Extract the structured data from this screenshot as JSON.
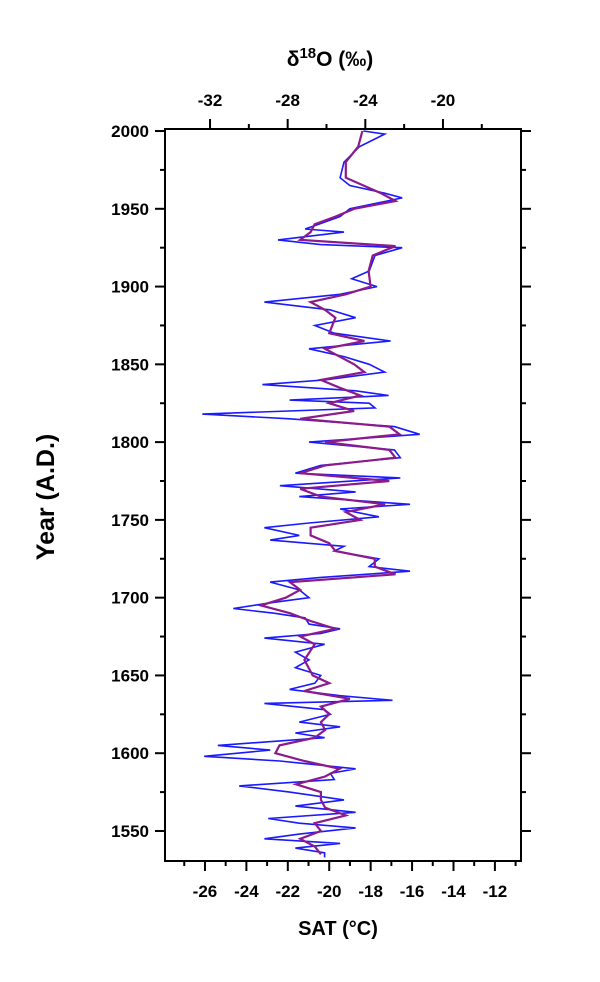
{
  "chart_data": {
    "type": "line",
    "x2label": [
      "δ",
      "18",
      "O (‰)"
    ],
    "xlabel": "SAT (°C)",
    "ylabel": "Year (A.D.)",
    "xlim": [
      -27.93,
      -10.74
    ],
    "xticks": [
      -26,
      -24,
      -22,
      -20,
      -18,
      -16,
      -14,
      -12
    ],
    "xminorticks": [
      -27,
      -25,
      -23,
      -21,
      -19,
      -17,
      -15,
      -13,
      -11
    ],
    "x2lim": [
      -34.32,
      -15.98
    ],
    "x2ticks": [
      -32,
      -28,
      -24,
      -20
    ],
    "x2minorticks": [
      -30,
      -26,
      -22,
      -18
    ],
    "ylim": [
      1530.7,
      2001.3
    ],
    "yticks": [
      1550,
      1600,
      1650,
      1700,
      1750,
      1800,
      1850,
      1900,
      1950,
      2000
    ],
    "yminorticks": [
      1575,
      1625,
      1675,
      1725,
      1775,
      1825,
      1875,
      1925,
      1975
    ],
    "series": [
      {
        "color": "#1a1aff",
        "axis": "x2",
        "y": [
          2000,
          1998,
          1990,
          1980,
          1970,
          1965,
          1960,
          1957,
          1950,
          1945,
          1940,
          1937,
          1935,
          1930,
          1927,
          1925,
          1920,
          1910,
          1905,
          1900,
          1895,
          1890,
          1885,
          1880,
          1875,
          1870,
          1865,
          1860,
          1855,
          1850,
          1845,
          1840,
          1837,
          1833,
          1830,
          1827,
          1825,
          1822,
          1818,
          1815,
          1810,
          1805,
          1800,
          1795,
          1790,
          1785,
          1780,
          1777,
          1772,
          1768,
          1765,
          1760,
          1757,
          1752,
          1748,
          1745,
          1740,
          1737,
          1733,
          1730,
          1725,
          1720,
          1717,
          1713,
          1710,
          1705,
          1700,
          1697,
          1693,
          1690,
          1687,
          1683,
          1680,
          1677,
          1674,
          1670,
          1665,
          1660,
          1655,
          1650,
          1645,
          1641,
          1637,
          1634,
          1632,
          1628,
          1625,
          1620,
          1617,
          1613,
          1610,
          1605,
          1602,
          1598,
          1595,
          1590,
          1587,
          1583,
          1579,
          1575,
          1570,
          1566,
          1562,
          1558,
          1555,
          1552,
          1548,
          1545,
          1542,
          1539,
          1536,
          1533
        ],
        "values": [
          -24.1,
          -23.0,
          -24.3,
          -25.1,
          -25.3,
          -24.8,
          -23.0,
          -22.1,
          -24.8,
          -25.3,
          -26.4,
          -27.1,
          -25.1,
          -28.5,
          -26.3,
          -22.1,
          -23.5,
          -23.8,
          -24.7,
          -23.4,
          -25.3,
          -29.2,
          -25.8,
          -24.5,
          -26.6,
          -25.6,
          -22.7,
          -26.9,
          -25.1,
          -23.8,
          -23.0,
          -26.1,
          -29.3,
          -24.5,
          -22.8,
          -27.9,
          -23.8,
          -23.5,
          -32.4,
          -27.9,
          -22.5,
          -21.2,
          -26.9,
          -22.5,
          -22.2,
          -26.3,
          -27.6,
          -22.2,
          -28.4,
          -24.5,
          -27.4,
          -21.7,
          -25.3,
          -23.3,
          -26.9,
          -29.2,
          -27.4,
          -28.9,
          -25.1,
          -25.6,
          -23.3,
          -23.8,
          -21.7,
          -26.3,
          -28.9,
          -27.4,
          -26.9,
          -28.7,
          -30.8,
          -28.7,
          -27.1,
          -26.9,
          -25.3,
          -26.3,
          -29.2,
          -26.1,
          -27.6,
          -26.9,
          -27.6,
          -26.3,
          -26.6,
          -27.9,
          -25.3,
          -22.6,
          -29.2,
          -26.1,
          -25.8,
          -27.4,
          -25.3,
          -27.6,
          -26.1,
          -31.6,
          -28.9,
          -32.3,
          -28.4,
          -24.5,
          -25.8,
          -25.6,
          -30.5,
          -27.9,
          -25.1,
          -27.6,
          -24.5,
          -29.0,
          -27.4,
          -24.5,
          -27.4,
          -29.2,
          -25.3,
          -27.6,
          -26.1,
          -26.1
        ]
      },
      {
        "color": "#8b1a8b",
        "axis": "x",
        "y": [
          2000,
          1990,
          1980,
          1970,
          1960,
          1955,
          1950,
          1945,
          1940,
          1935,
          1930,
          1926,
          1920,
          1910,
          1900,
          1895,
          1890,
          1885,
          1880,
          1870,
          1865,
          1860,
          1850,
          1845,
          1840,
          1835,
          1830,
          1825,
          1820,
          1815,
          1810,
          1805,
          1800,
          1795,
          1790,
          1785,
          1780,
          1775,
          1770,
          1765,
          1760,
          1755,
          1750,
          1745,
          1740,
          1735,
          1730,
          1725,
          1720,
          1715,
          1710,
          1705,
          1700,
          1695,
          1690,
          1685,
          1680,
          1675,
          1670,
          1660,
          1650,
          1645,
          1640,
          1635,
          1630,
          1625,
          1620,
          1615,
          1610,
          1605,
          1600,
          1595,
          1590,
          1585,
          1580,
          1575,
          1570,
          1565,
          1560,
          1555,
          1550,
          1545,
          1540,
          1535
        ],
        "values": [
          -18.4,
          -18.6,
          -19.2,
          -19.2,
          -17.5,
          -16.8,
          -18.8,
          -19.7,
          -20.7,
          -20.9,
          -21.4,
          -16.8,
          -17.9,
          -18.1,
          -18.0,
          -19.2,
          -20.9,
          -20.2,
          -19.7,
          -20.0,
          -18.3,
          -20.2,
          -18.8,
          -18.3,
          -20.4,
          -19.5,
          -18.5,
          -20.0,
          -18.8,
          -21.4,
          -17.1,
          -16.6,
          -20.2,
          -17.1,
          -16.8,
          -20.2,
          -21.4,
          -17.1,
          -21.4,
          -20.4,
          -17.3,
          -19.2,
          -18.5,
          -20.9,
          -20.9,
          -20.0,
          -19.7,
          -17.8,
          -17.8,
          -16.8,
          -21.9,
          -21.4,
          -22.1,
          -23.3,
          -21.9,
          -20.9,
          -19.7,
          -21.4,
          -20.7,
          -21.2,
          -20.8,
          -20.0,
          -21.2,
          -19.0,
          -20.4,
          -20.0,
          -20.4,
          -20.2,
          -20.7,
          -22.4,
          -22.6,
          -21.2,
          -19.5,
          -20.2,
          -21.6,
          -20.4,
          -20.4,
          -20.2,
          -19.2,
          -20.7,
          -20.4,
          -21.4,
          -20.7,
          -20.4
        ]
      }
    ]
  }
}
